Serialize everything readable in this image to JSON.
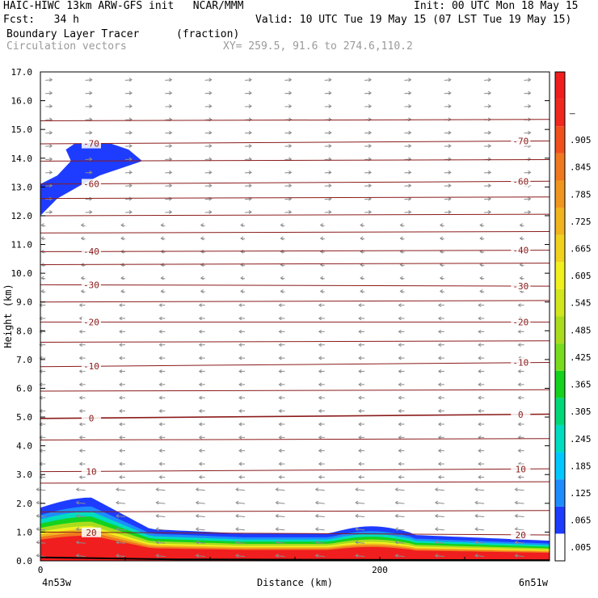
{
  "header": {
    "title_left": "HAIC-HIWC 13km ARW-GFS init   NCAR/MMM",
    "init": "Init: 00 UTC Mon 18 May 15",
    "fcst": "Fcst:   34 h",
    "valid": "Valid: 10 UTC Tue 19 May 15 (07 LST Tue 19 May 15)",
    "field": "Boundary Layer Tracer",
    "units": "(fraction)",
    "vectors": "Circulation vectors",
    "xy": "XY= 259.5, 91.6 to 274.6,110.2"
  },
  "colors": {
    "contour": "#8b1a1a",
    "vector": "#8c8c8c",
    "axis": "#000000"
  },
  "chart_data": {
    "type": "cross-section",
    "ylabel": "Height (km)",
    "xlabel": "Distance (km)",
    "ylim": [
      0,
      17
    ],
    "xlim": [
      0,
      300
    ],
    "y_ticks": [
      "0.0",
      "1.0",
      "2.0",
      "3.0",
      "4.0",
      "5.0",
      "6.0",
      "7.0",
      "8.0",
      "9.0",
      "10.0",
      "11.0",
      "12.0",
      "13.0",
      "14.0",
      "15.0",
      "16.0",
      "17.0"
    ],
    "x_ticks": [
      {
        "value": 0,
        "label": "0"
      },
      {
        "value": 200,
        "label": "200"
      }
    ],
    "endpoint_left": "4n53w",
    "endpoint_right": "6n51w",
    "temperature_contours": [
      {
        "value": 20,
        "label": "20",
        "y_left": 1.0,
        "y_right": 0.9
      },
      {
        "value": 10,
        "label": "10",
        "y_left": 3.1,
        "y_right": 3.2
      },
      {
        "value": 0,
        "label": "0",
        "y_left": 4.95,
        "y_right": 5.1
      },
      {
        "value": -10,
        "label": "-10",
        "y_left": 6.75,
        "y_right": 6.9
      },
      {
        "value": -20,
        "label": "-20",
        "y_left": 8.3,
        "y_right": 8.3
      },
      {
        "value": -30,
        "label": "-30",
        "y_left": 9.6,
        "y_right": 9.55
      },
      {
        "value": -40,
        "label": "-40",
        "y_left": 10.75,
        "y_right": 10.8
      },
      {
        "value": -60,
        "label": "-60",
        "y_left": 13.1,
        "y_right": 13.2
      },
      {
        "value": -70,
        "label": "-70",
        "y_left": 14.5,
        "y_right": 14.6
      }
    ],
    "tracer_upper_patch": {
      "level": "0.005-0.125",
      "top_km": 14.5,
      "bottom_km": 12.0,
      "x_extent_km": [
        0,
        65
      ]
    },
    "colorbar_labels": [
      ".005",
      ".065",
      ".125",
      ".185",
      ".245",
      ".305",
      ".365",
      ".425",
      ".485",
      ".545",
      ".605",
      ".665",
      ".725",
      ".785",
      ".845",
      ".905",
      "–"
    ],
    "colorbar_colors": [
      "#ffffff",
      "#1e3cff",
      "#1e8cff",
      "#00c8ff",
      "#00dcc0",
      "#00d878",
      "#14d21e",
      "#78dc1e",
      "#aadc1e",
      "#d2e61e",
      "#f0f01e",
      "#f0d21e",
      "#f0b41e",
      "#f0961e",
      "#f0781e",
      "#f0501e",
      "#f0281e",
      "#f01e1e"
    ]
  }
}
